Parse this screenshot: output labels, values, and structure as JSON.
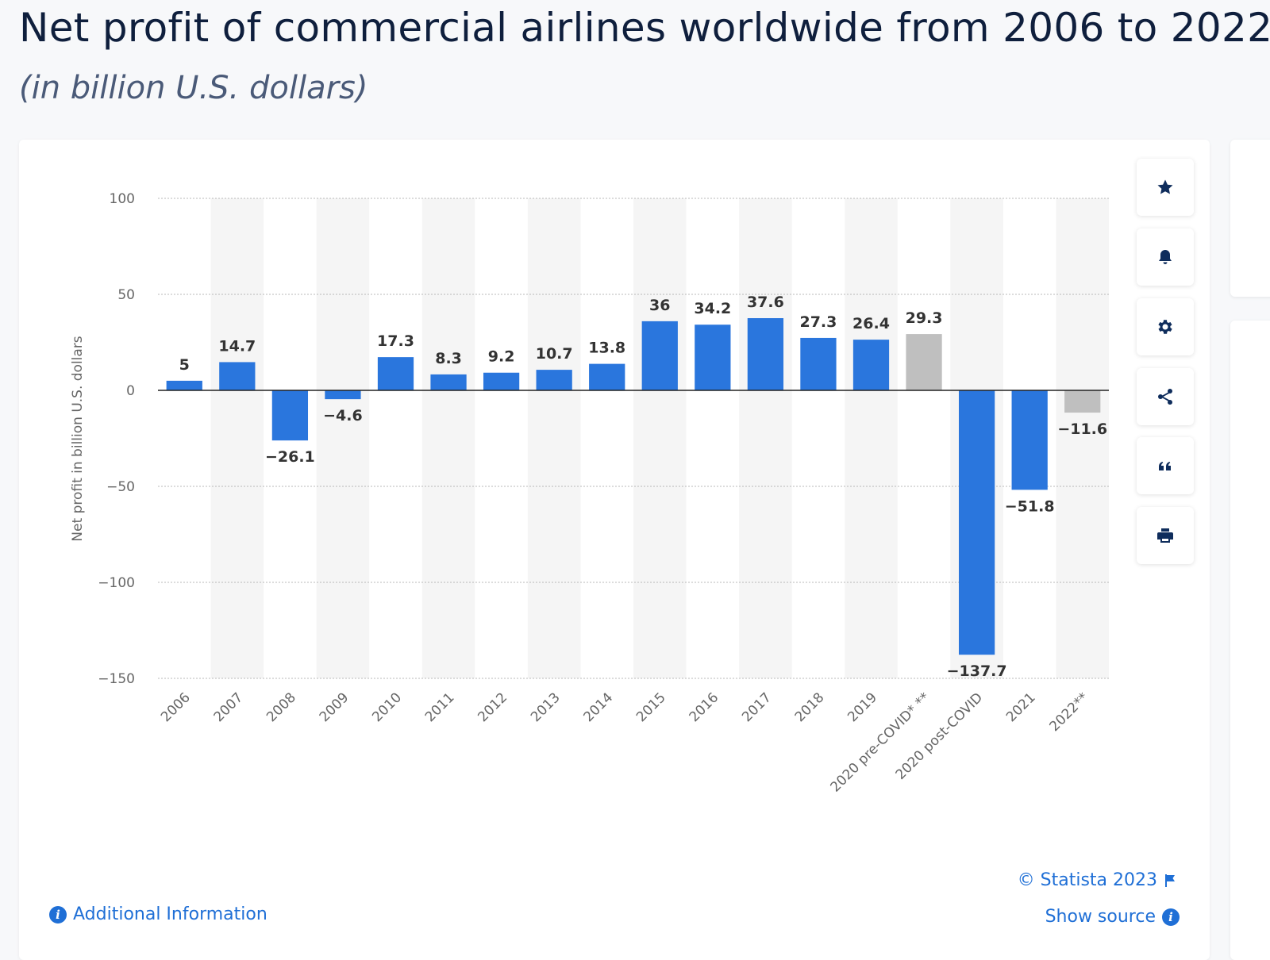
{
  "header": {
    "title": "Net profit of commercial airlines worldwide from 2006 to 2022",
    "subtitle": "(in billion U.S. dollars)"
  },
  "colors": {
    "bar_actual": "#2a76dd",
    "bar_forecast": "#bfbfbf",
    "band": "#f5f5f5",
    "grid": "#b8b8b8"
  },
  "toolbar": {
    "icons": [
      "star-icon",
      "bell-icon",
      "gear-icon",
      "share-icon",
      "quote-icon",
      "print-icon"
    ]
  },
  "footer": {
    "copyright": "© Statista 2023",
    "show_source": "Show source",
    "additional_info": "Additional Information"
  },
  "chart_data": {
    "type": "bar",
    "title": "",
    "xlabel": "",
    "ylabel": "Net profit in billion U.S. dollars",
    "ylim": [
      -150,
      100
    ],
    "yticks": [
      100,
      50,
      0,
      -50,
      -100,
      -150
    ],
    "ytick_labels": [
      "100",
      "50",
      "0",
      "−50",
      "−100",
      "−150"
    ],
    "grid": true,
    "categories": [
      "2006",
      "2007",
      "2008",
      "2009",
      "2010",
      "2011",
      "2012",
      "2013",
      "2014",
      "2015",
      "2016",
      "2017",
      "2018",
      "2019",
      "2020 pre-COVID* **",
      "2020 post-COVID",
      "2021",
      "2022**"
    ],
    "values": [
      5,
      14.7,
      -26.1,
      -4.6,
      17.3,
      8.3,
      9.2,
      10.7,
      13.8,
      36,
      34.2,
      37.6,
      27.3,
      26.4,
      29.3,
      -137.7,
      -51.8,
      -11.6
    ],
    "value_labels": [
      "5",
      "14.7",
      "−26.1",
      "−4.6",
      "17.3",
      "8.3",
      "9.2",
      "10.7",
      "13.8",
      "36",
      "34.2",
      "37.6",
      "27.3",
      "26.4",
      "29.3",
      "−137.7",
      "−51.8",
      "−11.6"
    ],
    "forecast": [
      false,
      false,
      false,
      false,
      false,
      false,
      false,
      false,
      false,
      false,
      false,
      false,
      false,
      false,
      true,
      false,
      false,
      true
    ]
  }
}
